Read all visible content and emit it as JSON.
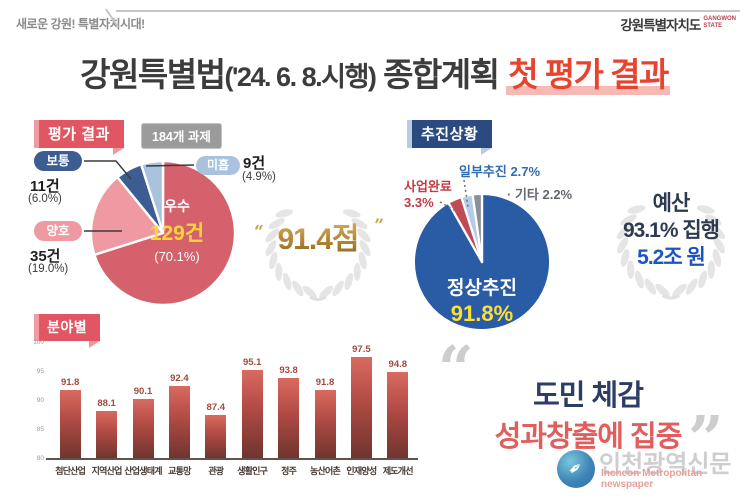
{
  "header": {
    "slogan": "새로운 강원! 특별자치시대!",
    "logo_main": "강원특별자치도",
    "logo_sub_line1": "GANGWON",
    "logo_sub_line2": "STATE"
  },
  "title": {
    "part1": "강원특별법",
    "paren": "('24. 6. 8.시행)",
    "part2": " 종합계획 ",
    "highlight": "첫 평가 결과"
  },
  "evaluation": {
    "badge": "평가 결과",
    "tasks_badge": "184개 과제",
    "inside_label": "우수",
    "inside_count": "129건",
    "inside_pct": "(70.1%)",
    "average_label": "보통",
    "average_count": "11건",
    "average_pct": "(6.0%)",
    "good_label": "양호",
    "good_count": "35건",
    "good_pct": "(19.0%)",
    "poor_label": "미흡",
    "poor_count": "9건",
    "poor_pct": "(4.9%)",
    "score": "91.4점",
    "quote_open": "“",
    "quote_close": "”"
  },
  "progress": {
    "badge": "추진상황",
    "complete_line1": "사업완료",
    "complete_line2": "3.3%",
    "partial_label": "일부추진 2.7%",
    "etc_label": "· 기타 2.2%",
    "inside_label": "정상추진",
    "inside_pct": "91.8%",
    "budget_line1": "예산",
    "budget_line2": "93.1% 집행",
    "budget_line3": "5.2조 원"
  },
  "sector": {
    "badge": "분야별"
  },
  "quote": {
    "line1": "도민 체감",
    "line2": "성과창출에 집중",
    "open": "“",
    "close": "”"
  },
  "watermark": {
    "kr": "인천광역신문",
    "en": "Incheon Metropolitan newspaper",
    "pen_icon": "✒"
  },
  "colors": {
    "accent_red": "#e8432e",
    "highlight_pink": "#f6b9b4",
    "ribbon_red": "#e25663",
    "ribbon_navy": "#2b4a80",
    "gold": "#b8893a",
    "yellow": "#ffd43b",
    "quote_navy": "#2c3d66",
    "quote_red": "#e15e5e",
    "budget_blue": "#1d55c0"
  },
  "chart_data": [
    {
      "type": "pie",
      "title": "평가 결과",
      "total_label": "184개 과제",
      "total_tasks": 184,
      "score": 91.4,
      "slices": [
        {
          "label": "우수",
          "count": 129,
          "pct": 70.1,
          "color": "#d5616d"
        },
        {
          "label": "양호",
          "count": 35,
          "pct": 19.0,
          "color": "#ef9aa2"
        },
        {
          "label": "보통",
          "count": 11,
          "pct": 6.0,
          "color": "#3d5d92"
        },
        {
          "label": "미흡",
          "count": 9,
          "pct": 4.9,
          "color": "#a9c2dd"
        }
      ]
    },
    {
      "type": "pie",
      "title": "추진상황",
      "annotation": "예산 93.1% 집행 5.2조 원",
      "slices": [
        {
          "label": "정상추진",
          "pct": 91.8,
          "color": "#2a5ba5"
        },
        {
          "label": "사업완료",
          "pct": 3.3,
          "color": "#c04b56"
        },
        {
          "label": "일부추진",
          "pct": 2.7,
          "color": "#b3cde8"
        },
        {
          "label": "기타",
          "pct": 2.2,
          "color": "#8b9097"
        }
      ]
    },
    {
      "type": "bar",
      "title": "분야별",
      "categories": [
        "첨단산업",
        "지역산업",
        "산업생태계",
        "교통망",
        "관광",
        "생활인구",
        "정주",
        "농산어촌",
        "인재양성",
        "제도개선"
      ],
      "values": [
        91.8,
        88.1,
        90.1,
        92.4,
        87.4,
        95.1,
        93.8,
        91.8,
        97.5,
        94.8
      ],
      "ylim": [
        80,
        100
      ],
      "yticks": [
        80,
        85,
        90,
        95,
        100
      ],
      "grid": false,
      "bar_color": "#b04a44"
    }
  ]
}
